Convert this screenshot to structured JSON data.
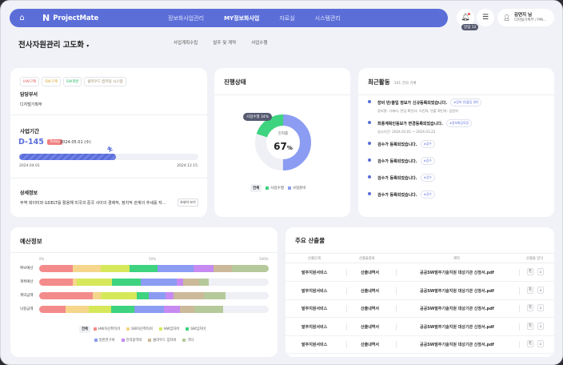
{
  "topnav": {
    "home_icon": "home-icon",
    "logo_mark": "N",
    "logo_text": "ProjectMate",
    "items": [
      {
        "label": "정보화사업관리",
        "active": false
      },
      {
        "label": "MY정보화사업",
        "active": true
      },
      {
        "label": "자료실",
        "active": false
      },
      {
        "label": "시스템관리",
        "active": false
      }
    ],
    "alarm_badge": "알림 12",
    "user": {
      "name": "김연지 님",
      "dept": "디지털기획부 / PM..."
    }
  },
  "subheader": {
    "project_title": "전사자원관리 고도화",
    "tabs": [
      "사업계획수립",
      "발주 및 계약",
      "사업수행"
    ]
  },
  "info_card": {
    "tags": [
      {
        "label": "HW구매",
        "color": "#e25a5a"
      },
      {
        "label": "SW구매",
        "color": "#d9a62e"
      },
      {
        "label": "SW개발",
        "color": "#2fb868"
      },
      {
        "label": "클라우드 컴퓨팅 시스템",
        "color": "#9a8a6a"
      }
    ],
    "dept_label": "담당부서",
    "dept_value": "디지털기획부",
    "period_label": "사업기간",
    "dday": "D-145",
    "today_badge": "Today",
    "today_date": "2024.05.01 (수)",
    "start_date": "2024.04.01",
    "end_date": "2024.12.15",
    "progress_percent": 54,
    "detail_label": "상세정보",
    "detail_text": "무역 데이터와 GDELT를 활용해 미국과 중국 사이의 경제적, 정치적 관계의 추세를 자...",
    "detail_button": "자세히 보기"
  },
  "status_card": {
    "title": "진행상태",
    "center_label": "진척률",
    "center_value": "67",
    "center_unit": "%",
    "tooltip": "사업수행 34%",
    "legend_all": "전체",
    "legend": [
      {
        "label": "사업수행",
        "color": "#3dd37f"
      },
      {
        "label": "사업준비",
        "color": "#8b9cf2"
      }
    ]
  },
  "activity_card": {
    "title": "최근활동",
    "count": "101 건의 기록",
    "items": [
      {
        "text": "장비 반/출입 정보가 신규등록되었습니다.",
        "tag": "#장비 반/출입 관리",
        "sub": "장비명: 가제리, 반입 확인자: 이진화, 반출 확인자: 김연지"
      },
      {
        "text": "최종계획인동보가 변경등록되었습니다.",
        "tag": "#정보화공모장",
        "sub": "실시기간: 2024.03.01 ~ 2024.03.22"
      },
      {
        "text": "검수가 등록되었습니다.",
        "tag": "#검수",
        "sub": ""
      },
      {
        "text": "검수가 등록되었습니다.",
        "tag": "#검수",
        "sub": ""
      },
      {
        "text": "검수가 등록되었습니다.",
        "tag": "#검수",
        "sub": ""
      },
      {
        "text": "검수가 등록되었습니다.",
        "tag": "#검수",
        "sub": ""
      }
    ]
  },
  "budget_card": {
    "title": "예산정보",
    "axis": [
      "0%",
      "50%",
      "100%"
    ],
    "legend_all": "전체"
  },
  "chart_data": {
    "type": "bar",
    "stacked": true,
    "orientation": "horizontal",
    "categories": [
      "확보예산",
      "계획예산",
      "계약금액",
      "낙찰금액"
    ],
    "series": [
      {
        "name": "HW자산취득비",
        "color": "#f48b8b",
        "values": [
          14.5,
          14.5,
          23.3,
          11.5
        ]
      },
      {
        "name": "SW자산취득비",
        "color": "#f5d68a",
        "values": [
          12.3,
          2.0,
          3.5,
          10.0
        ]
      },
      {
        "name": "HW임차비",
        "color": "#d6e85a",
        "values": [
          12.5,
          15.2,
          15.8,
          10.0
        ]
      },
      {
        "name": "SW임차비",
        "color": "#3dd37f",
        "values": [
          12.3,
          12.5,
          5.0,
          10.0
        ]
      },
      {
        "name": "일반연구비",
        "color": "#8b9cf2",
        "values": [
          15.7,
          15.8,
          7.5,
          12.7
        ]
      },
      {
        "name": "관리용역비",
        "color": "#c68af2",
        "values": [
          8.7,
          2.8,
          3.5,
          7.0
        ]
      },
      {
        "name": "클라우드 임차비",
        "color": "#cbb99a",
        "values": [
          8.1,
          7.0,
          13.3,
          6.3
        ]
      },
      {
        "name": "기타",
        "color": "#b5c99a",
        "values": [
          15.9,
          4.2,
          9.3,
          12.7
        ]
      }
    ],
    "xlim": [
      0,
      100
    ],
    "xlabel": "",
    "ylabel": "",
    "legend_position": "bottom"
  },
  "outputs_card": {
    "title": "주요 산출물",
    "columns": [
      "산출단계",
      "산출물종류",
      "제목",
      "산출물 양식"
    ],
    "rows": [
      {
        "stage": "발주지원서비스",
        "type": "산출내역서",
        "title": "공공SW발주기술지원 대상기관 신청서.pdf"
      },
      {
        "stage": "발주지원서비스",
        "type": "산출내역서",
        "title": "공공SW발주기술지원 대상기관 신청서.pdf"
      },
      {
        "stage": "발주지원서비스",
        "type": "산출내역서",
        "title": "공공SW발주기술지원 대상기관 신청서.pdf"
      },
      {
        "stage": "발주지원서비스",
        "type": "산출내역서",
        "title": "공공SW발주기술지원 대상기관 신청서.pdf"
      },
      {
        "stage": "발주지원서비스",
        "type": "산출내역서",
        "title": "공공SW발주기술지원 대상기관 신청서.pdf"
      }
    ]
  }
}
